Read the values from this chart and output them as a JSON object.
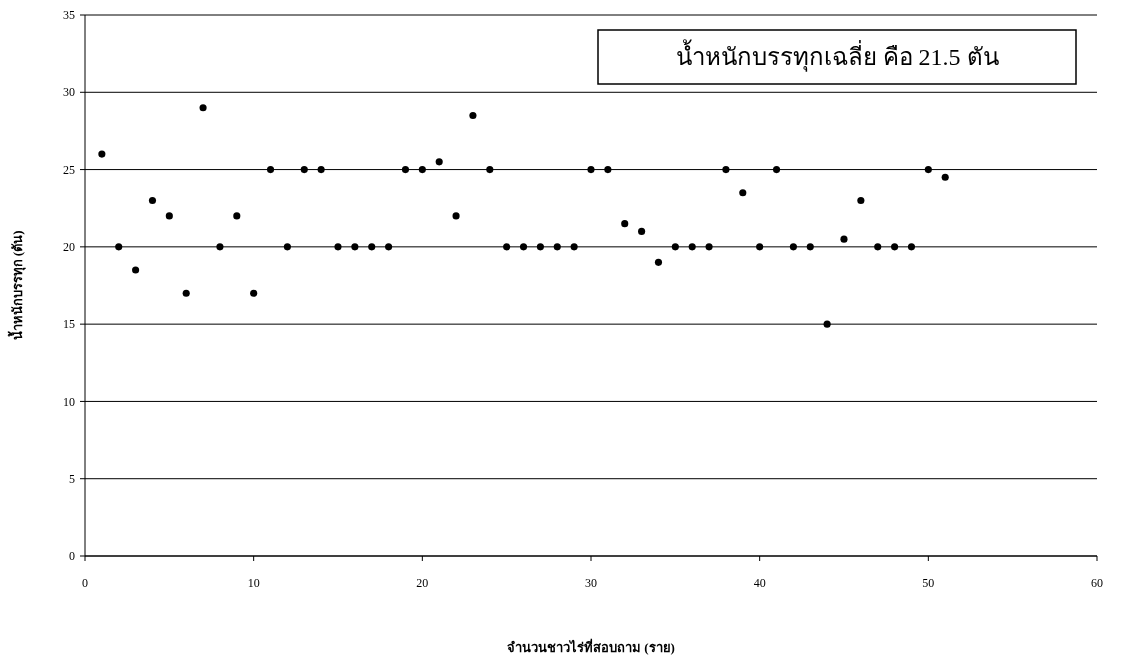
{
  "chart_data": {
    "type": "scatter",
    "xlabel": "จำนวนชาวไร่ที่สอบถาม (ราย)",
    "ylabel": "น้ำหนักบรรทุก (ตัน)",
    "annotations": [
      "น้ำหนักบรรทุกเฉลี่ย คือ 21.5 ตัน"
    ],
    "x": [
      1,
      2,
      3,
      4,
      5,
      6,
      7,
      8,
      9,
      10,
      11,
      12,
      13,
      14,
      15,
      16,
      17,
      18,
      19,
      20,
      21,
      22,
      23,
      24,
      25,
      26,
      27,
      28,
      29,
      30,
      31,
      32,
      33,
      34,
      35,
      36,
      37,
      38,
      39,
      40,
      41,
      42,
      43,
      44,
      45,
      46,
      47,
      48,
      49,
      50,
      51
    ],
    "series": [
      {
        "color": "#000000",
        "values": [
          26,
          20,
          18.5,
          23,
          22,
          17,
          29,
          20,
          22,
          17,
          25,
          20,
          25,
          25,
          20,
          20,
          20,
          20,
          25,
          25,
          25.5,
          22,
          28.5,
          25,
          20,
          20,
          20,
          20,
          20,
          25,
          25,
          21.5,
          21,
          19,
          20,
          20,
          20,
          25,
          23.5,
          20,
          25,
          20,
          20,
          15,
          20.5,
          23,
          20,
          20,
          20,
          25,
          24.5
        ]
      }
    ],
    "xlim": [
      0,
      60
    ],
    "ylim": [
      0,
      35
    ],
    "xticks": [
      0,
      10,
      20,
      30,
      40,
      50,
      60
    ],
    "yticks": [
      0,
      5,
      10,
      15,
      20,
      25,
      30,
      35
    ],
    "grid": "y",
    "marker": "circle"
  }
}
